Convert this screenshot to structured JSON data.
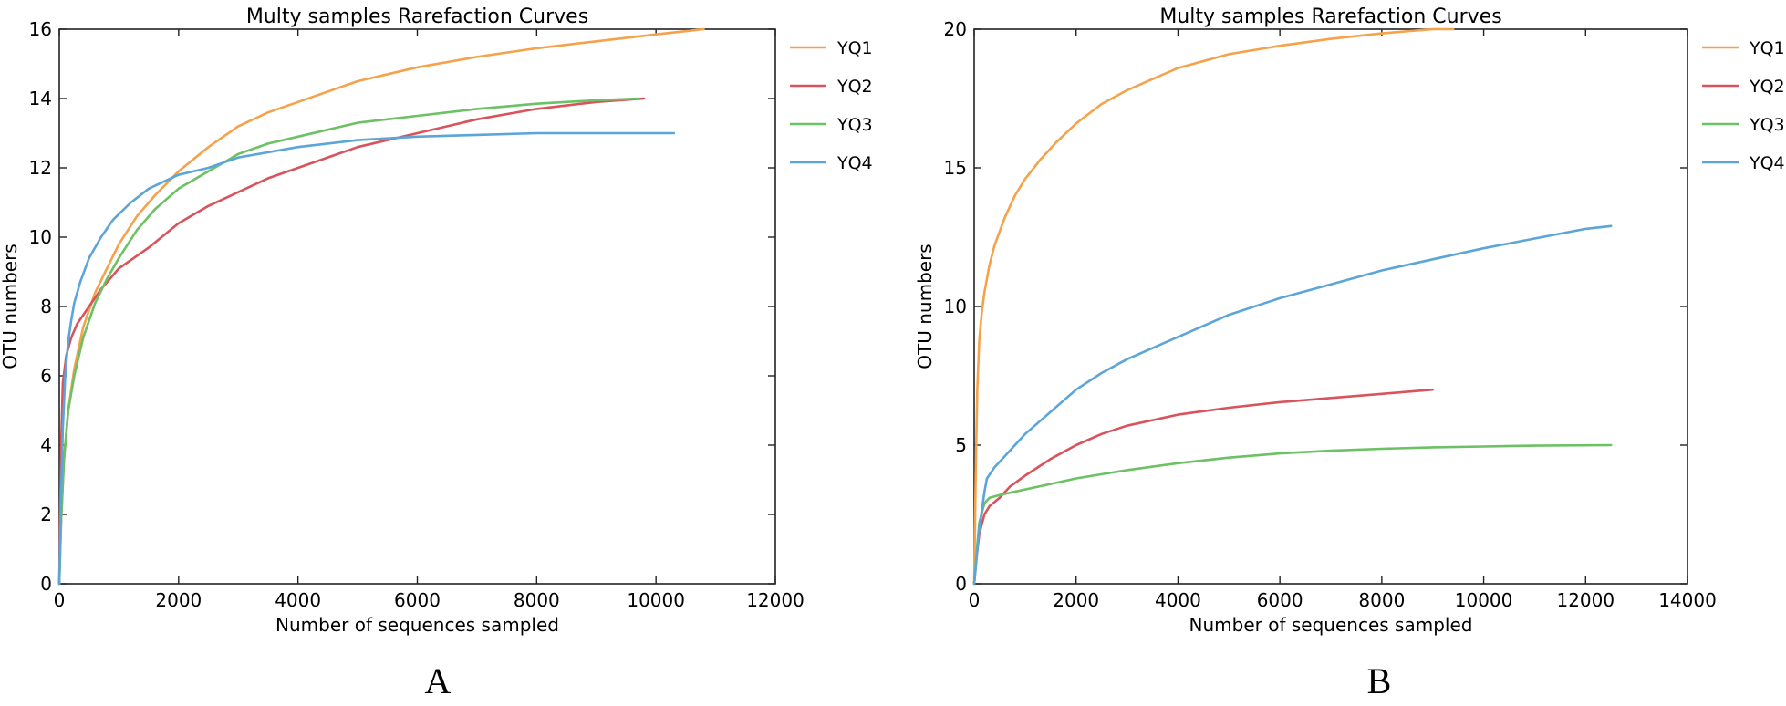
{
  "chart_data": [
    {
      "panel_label": "A",
      "type": "line",
      "title": "Multy samples Rarefaction Curves",
      "xlabel": "Number of sequences sampled",
      "ylabel": "OTU numbers",
      "xlim": [
        0,
        12000
      ],
      "ylim": [
        0,
        16
      ],
      "xticks": [
        0,
        2000,
        4000,
        6000,
        8000,
        10000,
        12000
      ],
      "yticks": [
        0,
        2,
        4,
        6,
        8,
        10,
        12,
        14,
        16
      ],
      "grid": false,
      "legend_position": "outside-right",
      "series": [
        {
          "name": "YQ1",
          "color": "#f5a24b",
          "x": [
            0,
            30,
            80,
            150,
            250,
            400,
            600,
            800,
            1000,
            1300,
            1600,
            2000,
            2500,
            3000,
            3500,
            4000,
            5000,
            6000,
            7000,
            8000,
            9000,
            10000,
            10800
          ],
          "y": [
            0,
            1.8,
            3.6,
            5.0,
            6.2,
            7.4,
            8.4,
            9.1,
            9.8,
            10.6,
            11.2,
            11.9,
            12.6,
            13.2,
            13.6,
            13.9,
            14.5,
            14.9,
            15.2,
            15.45,
            15.65,
            15.85,
            16.0
          ]
        },
        {
          "name": "YQ2",
          "color": "#d9535c",
          "x": [
            0,
            30,
            60,
            120,
            200,
            300,
            500,
            700,
            1000,
            1500,
            2000,
            2500,
            3000,
            3500,
            4000,
            5000,
            6000,
            7000,
            8000,
            9000,
            9800
          ],
          "y": [
            0,
            4.0,
            5.8,
            6.6,
            7.1,
            7.5,
            8.0,
            8.5,
            9.1,
            9.7,
            10.4,
            10.9,
            11.3,
            11.7,
            12.0,
            12.6,
            13.0,
            13.4,
            13.7,
            13.9,
            14.0
          ]
        },
        {
          "name": "YQ3",
          "color": "#6cc164",
          "x": [
            0,
            30,
            80,
            150,
            250,
            400,
            600,
            800,
            1000,
            1300,
            1600,
            2000,
            2500,
            3000,
            3500,
            4000,
            5000,
            6000,
            7000,
            8000,
            9000,
            9700
          ],
          "y": [
            0,
            1.8,
            3.6,
            5.0,
            6.0,
            7.1,
            8.1,
            8.8,
            9.4,
            10.2,
            10.8,
            11.4,
            11.9,
            12.4,
            12.7,
            12.9,
            13.3,
            13.5,
            13.7,
            13.85,
            13.95,
            14.0
          ]
        },
        {
          "name": "YQ4",
          "color": "#5ba5d9",
          "x": [
            0,
            30,
            60,
            100,
            150,
            200,
            250,
            350,
            500,
            700,
            900,
            1200,
            1500,
            2000,
            2500,
            3000,
            4000,
            5000,
            6000,
            7000,
            8000,
            9000,
            10000,
            10300
          ],
          "y": [
            0,
            2.5,
            4.5,
            6.0,
            7.0,
            7.6,
            8.1,
            8.7,
            9.4,
            10.0,
            10.5,
            11.0,
            11.4,
            11.8,
            12.0,
            12.3,
            12.6,
            12.8,
            12.9,
            12.95,
            13.0,
            13.0,
            13.0,
            13.0
          ]
        }
      ]
    },
    {
      "panel_label": "B",
      "type": "line",
      "title": "Multy samples Rarefaction Curves",
      "xlabel": "Number of sequences sampled",
      "ylabel": "OTU numbers",
      "xlim": [
        0,
        14000
      ],
      "ylim": [
        0,
        20
      ],
      "xticks": [
        0,
        2000,
        4000,
        6000,
        8000,
        10000,
        12000,
        14000
      ],
      "yticks": [
        0,
        5,
        10,
        15,
        20
      ],
      "grid": false,
      "legend_position": "outside-right",
      "series": [
        {
          "name": "YQ1",
          "color": "#f5a24b",
          "x": [
            0,
            30,
            60,
            100,
            150,
            200,
            300,
            400,
            600,
            800,
            1000,
            1300,
            1600,
            2000,
            2500,
            3000,
            3500,
            4000,
            5000,
            6000,
            7000,
            8000,
            9000,
            9400
          ],
          "y": [
            0,
            4.0,
            7.0,
            8.8,
            9.8,
            10.5,
            11.5,
            12.2,
            13.2,
            14.0,
            14.6,
            15.3,
            15.9,
            16.6,
            17.3,
            17.8,
            18.2,
            18.6,
            19.1,
            19.4,
            19.65,
            19.85,
            20.0,
            20.0
          ]
        },
        {
          "name": "YQ2",
          "color": "#d9535c",
          "x": [
            0,
            50,
            100,
            200,
            300,
            500,
            700,
            1000,
            1500,
            2000,
            2500,
            3000,
            4000,
            5000,
            6000,
            7000,
            8000,
            9000
          ],
          "y": [
            0,
            1.0,
            1.8,
            2.5,
            2.8,
            3.1,
            3.5,
            3.9,
            4.5,
            5.0,
            5.4,
            5.7,
            6.1,
            6.35,
            6.55,
            6.7,
            6.85,
            7.0
          ]
        },
        {
          "name": "YQ3",
          "color": "#6cc164",
          "x": [
            0,
            50,
            100,
            200,
            300,
            500,
            1000,
            1500,
            2000,
            3000,
            4000,
            5000,
            6000,
            7000,
            8000,
            9000,
            10000,
            11000,
            12500
          ],
          "y": [
            0,
            1.2,
            2.2,
            2.9,
            3.1,
            3.2,
            3.4,
            3.6,
            3.8,
            4.1,
            4.35,
            4.55,
            4.7,
            4.8,
            4.87,
            4.92,
            4.95,
            4.98,
            5.0
          ]
        },
        {
          "name": "YQ4",
          "color": "#5ba5d9",
          "x": [
            0,
            50,
            100,
            200,
            250,
            400,
            600,
            800,
            1000,
            1500,
            2000,
            2500,
            3000,
            4000,
            5000,
            6000,
            7000,
            8000,
            9000,
            10000,
            11000,
            12000,
            12500
          ],
          "y": [
            0,
            1.0,
            2.0,
            3.3,
            3.8,
            4.2,
            4.6,
            5.0,
            5.4,
            6.2,
            7.0,
            7.6,
            8.1,
            8.9,
            9.7,
            10.3,
            10.8,
            11.3,
            11.7,
            12.1,
            12.45,
            12.8,
            12.9
          ]
        }
      ]
    }
  ]
}
